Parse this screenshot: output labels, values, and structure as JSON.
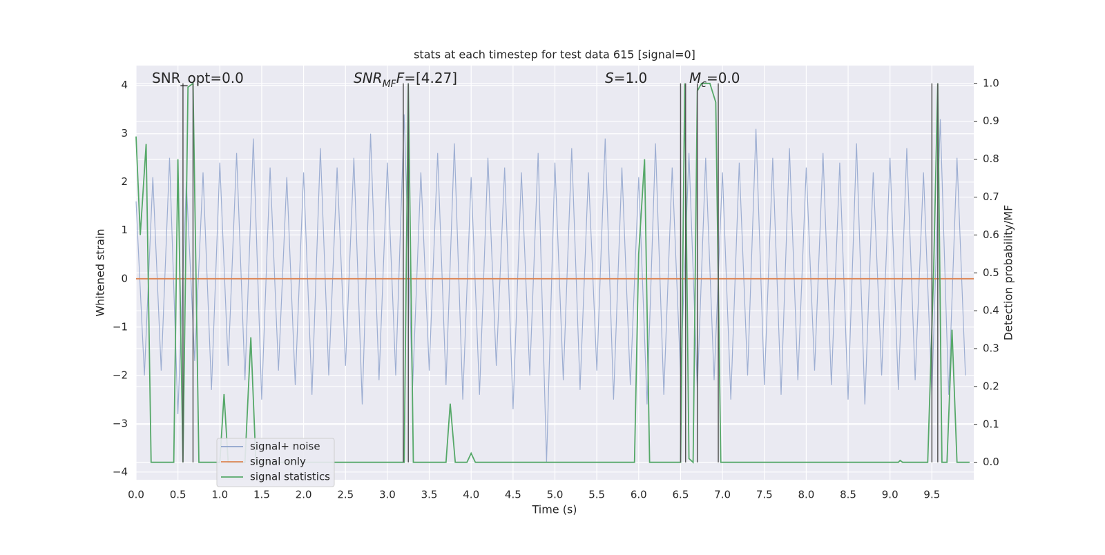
{
  "chart_data": {
    "type": "line",
    "title": "stats at each timestep for test data 615 [signal=0]",
    "xlabel": "Time (s)",
    "ylabel": "Whitened strain",
    "y2label": "Detection probability/MF",
    "annotations": [
      [
        {
          "text": "SNR_opt=0.0"
        }
      ],
      [
        {
          "text": "SNR",
          "italic": true
        },
        {
          "text": "MF",
          "italic": true,
          "sub": true
        },
        {
          "text": "F",
          "italic": true
        },
        {
          "text": "=[4.27]"
        }
      ],
      [
        {
          "text": "S",
          "italic": true
        },
        {
          "text": "=1.0"
        }
      ],
      [
        {
          "text": "M",
          "italic": true
        },
        {
          "text": "c",
          "italic": true,
          "sub": true
        },
        {
          "text": "=0.0"
        }
      ]
    ],
    "xlim": [
      0,
      10
    ],
    "ylim": [
      -4.16,
      4.41
    ],
    "y2lim": [
      -0.046,
      1.047
    ],
    "xticks": [
      {
        "value": 0,
        "label": "0.0"
      },
      0.5,
      {
        "value": 1,
        "label": "1.0"
      },
      1.5,
      {
        "value": 2,
        "label": "2.0"
      },
      2.5,
      {
        "value": 3,
        "label": "3.0"
      },
      3.5,
      {
        "value": 4,
        "label": "4.0"
      },
      4.5,
      {
        "value": 5,
        "label": "5.0"
      },
      5.5,
      {
        "value": 6,
        "label": "6.0"
      },
      6.5,
      {
        "value": 7,
        "label": "7.0"
      },
      7.5,
      {
        "value": 8,
        "label": "8.0"
      },
      8.5,
      {
        "value": 9,
        "label": "9.0"
      },
      9.5
    ],
    "yticks": [
      {
        "value": -4,
        "label": "−4"
      },
      {
        "value": -3,
        "label": "−3"
      },
      {
        "value": -2,
        "label": "−2"
      },
      {
        "value": -1,
        "label": "−1"
      },
      0,
      1,
      2,
      3,
      4
    ],
    "y2ticks": [
      {
        "value": 0,
        "label": "0.0"
      },
      0.1,
      0.2,
      0.3,
      0.4,
      0.5,
      0.6,
      0.7,
      0.8,
      0.9,
      {
        "value": 1,
        "label": "1.0"
      }
    ],
    "grid": true,
    "legend": "lower left",
    "vlines": [
      0.56,
      0.68,
      3.19,
      3.25,
      6.5,
      6.56,
      6.7,
      6.95,
      9.5,
      9.57
    ],
    "vline_color": "#555555",
    "series": [
      {
        "name": "signal+ noise",
        "color": "#8fa3cc",
        "x": [
          0.0,
          0.1,
          0.2,
          0.3,
          0.4,
          0.5,
          0.6,
          0.7,
          0.8,
          0.9,
          1.0,
          1.1,
          1.2,
          1.3,
          1.4,
          1.5,
          1.6,
          1.7,
          1.8,
          1.9,
          2.0,
          2.1,
          2.2,
          2.3,
          2.4,
          2.5,
          2.6,
          2.7,
          2.8,
          2.9,
          3.0,
          3.1,
          3.2,
          3.3,
          3.4,
          3.5,
          3.6,
          3.7,
          3.8,
          3.9,
          4.0,
          4.1,
          4.2,
          4.3,
          4.4,
          4.5,
          4.6,
          4.7,
          4.8,
          4.9,
          5.0,
          5.1,
          5.2,
          5.3,
          5.4,
          5.5,
          5.6,
          5.7,
          5.8,
          5.9,
          6.0,
          6.1,
          6.2,
          6.3,
          6.4,
          6.5,
          6.6,
          6.7,
          6.8,
          6.9,
          7.0,
          7.1,
          7.2,
          7.3,
          7.4,
          7.5,
          7.6,
          7.7,
          7.8,
          7.9,
          8.0,
          8.1,
          8.2,
          8.3,
          8.4,
          8.5,
          8.6,
          8.7,
          8.8,
          8.9,
          9.0,
          9.1,
          9.2,
          9.3,
          9.4,
          9.5,
          9.6,
          9.7,
          9.8,
          9.9
        ],
        "values": [
          1.6,
          -2.0,
          2.1,
          -1.9,
          2.5,
          -2.8,
          2.0,
          -1.7,
          2.2,
          -2.3,
          2.4,
          -1.8,
          2.6,
          -2.1,
          2.9,
          -2.5,
          2.3,
          -1.9,
          2.1,
          -2.2,
          2.2,
          -2.4,
          2.7,
          -2.0,
          2.3,
          -1.8,
          2.5,
          -2.6,
          3.0,
          -2.1,
          2.4,
          -2.0,
          3.4,
          -2.3,
          2.2,
          -1.9,
          2.6,
          -2.2,
          2.8,
          -2.5,
          2.1,
          -2.4,
          2.5,
          -1.8,
          2.3,
          -2.7,
          2.2,
          -2.0,
          2.6,
          -3.8,
          2.4,
          -2.1,
          2.7,
          -2.3,
          2.2,
          -1.9,
          2.9,
          -2.5,
          2.3,
          -2.2,
          2.1,
          -2.6,
          2.8,
          -2.4,
          2.3,
          -2.0,
          2.6,
          -2.3,
          2.5,
          -2.1,
          2.2,
          -2.5,
          2.4,
          -2.0,
          3.1,
          -2.2,
          2.5,
          -2.4,
          2.7,
          -2.1,
          2.3,
          -1.9,
          2.6,
          -2.2,
          2.4,
          -2.5,
          2.8,
          -2.6,
          2.2,
          -2.0,
          2.5,
          -2.3,
          2.7,
          -2.1,
          2.2,
          -2.4,
          3.3,
          -2.4,
          2.5,
          -2.0
        ]
      },
      {
        "name": "signal only",
        "color": "#dd8452",
        "x": [
          0,
          10
        ],
        "values": [
          0,
          0
        ]
      },
      {
        "name": "signal statistics",
        "color": "#55a868",
        "axis": "y2",
        "x": [
          0.0,
          0.05,
          0.12,
          0.18,
          0.45,
          0.5,
          0.56,
          0.62,
          0.68,
          0.75,
          1.0,
          1.05,
          1.1,
          1.3,
          1.37,
          1.43,
          3.2,
          3.25,
          3.31,
          3.7,
          3.75,
          3.81,
          3.95,
          4.0,
          4.05,
          5.95,
          6.0,
          6.07,
          6.13,
          6.5,
          6.55,
          6.6,
          6.65,
          6.7,
          6.75,
          6.85,
          6.92,
          6.98,
          9.1,
          9.12,
          9.15,
          9.45,
          9.52,
          9.57,
          9.62,
          9.68,
          9.74,
          9.8,
          9.95
        ],
        "values": [
          0.86,
          0.6,
          0.84,
          0,
          0,
          0.8,
          0,
          0.99,
          1.0,
          0,
          0,
          0.18,
          0,
          0,
          0.33,
          0,
          0,
          1.0,
          0,
          0,
          0.155,
          0,
          0,
          0.024,
          0,
          0,
          0.55,
          0.8,
          0,
          0,
          1.0,
          0.01,
          0,
          0.98,
          1.0,
          1.0,
          0.95,
          0,
          0,
          0.005,
          0,
          0,
          0.5,
          1.0,
          0,
          0,
          0.35,
          0,
          0
        ]
      }
    ]
  }
}
